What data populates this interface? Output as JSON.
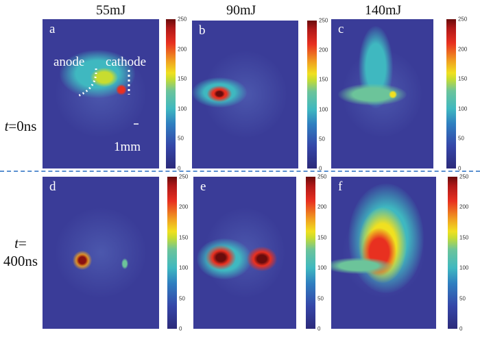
{
  "columns": [
    "55mJ",
    "90mJ",
    "140mJ"
  ],
  "rows": [
    {
      "t": "t",
      "rest": "=0ns",
      "line2": ""
    },
    {
      "t": "t",
      "rest": "=",
      "line2": "400ns"
    }
  ],
  "panels": [
    "a",
    "b",
    "c",
    "d",
    "e",
    "f"
  ],
  "annotations": {
    "anode": "anode",
    "cathode": "cathode",
    "scale": "1mm"
  },
  "colorbar": {
    "ticks": [
      "0",
      "50",
      "100",
      "150",
      "200",
      "250"
    ],
    "min": 0,
    "max": 250
  }
}
